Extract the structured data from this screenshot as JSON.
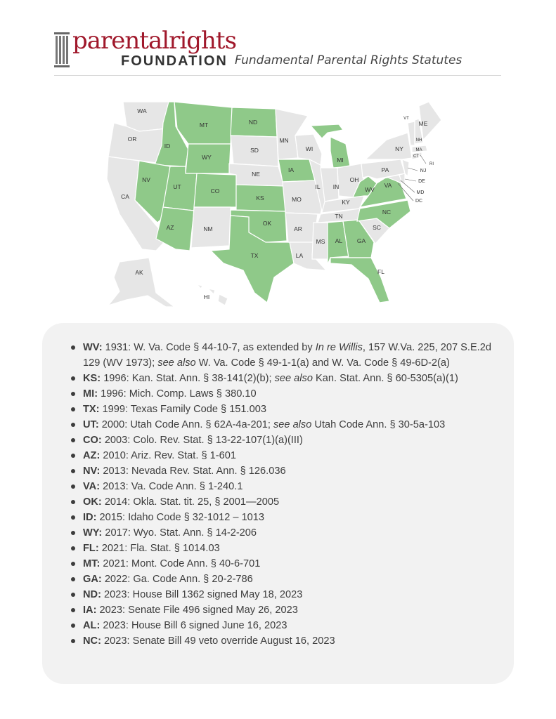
{
  "header": {
    "logo_word": "parentalrights",
    "logo_sub": "FOUNDATION",
    "title": "Fundamental Parental Rights Statutes"
  },
  "map": {
    "highlight_color": "#8fc989",
    "base_color": "#e6e6e6",
    "states": {
      "WA": "WA",
      "OR": "OR",
      "CA": "CA",
      "ID": "ID",
      "NV": "NV",
      "MT": "MT",
      "WY": "WY",
      "UT": "UT",
      "AZ": "AZ",
      "CO": "CO",
      "NM": "NM",
      "ND": "ND",
      "SD": "SD",
      "NE": "NE",
      "KS": "KS",
      "OK": "OK",
      "TX": "TX",
      "MN": "MN",
      "IA": "IA",
      "MO": "MO",
      "AR": "AR",
      "LA": "LA",
      "WI": "WI",
      "IL": "IL",
      "MI": "MI",
      "IN": "IN",
      "OH": "OH",
      "KY": "KY",
      "TN": "TN",
      "MS": "MS",
      "AL": "AL",
      "GA": "GA",
      "FL": "FL",
      "SC": "SC",
      "NC": "NC",
      "VA": "VA",
      "WV": "WV",
      "PA": "PA",
      "NY": "NY",
      "VT": "VT",
      "NH": "NH",
      "ME": "ME",
      "MA": "MA",
      "CT": "CT",
      "RI": "RI",
      "NJ": "NJ",
      "DE": "DE",
      "MD": "MD",
      "DC": "DC",
      "AK": "AK",
      "HI": "HI"
    }
  },
  "statutes": [
    {
      "state": "WV:",
      "text": " 1931: W. Va. Code § 44-10-7, as extended by ",
      "italic1": "In re Willis",
      "text2": ", 157 W.Va. 225, 207 S.E.2d 129 (WV 1973); ",
      "italic2": "see also",
      "text3": " W. Va. Code § 49-1-1(a) and W. Va. Code § 49-6D-2(a)"
    },
    {
      "state": "KS:",
      "text": " 1996: Kan. Stat. Ann. § 38-141(2)(b); ",
      "italic1": "see also",
      "text2": " Kan. Stat. Ann. § 60-5305(a)(1)"
    },
    {
      "state": "MI:",
      "text": " 1996: Mich. Comp. Laws § 380.10"
    },
    {
      "state": "TX:",
      "text": " 1999: Texas Family Code § 151.003"
    },
    {
      "state": "UT:",
      "text": " 2000: Utah Code Ann. § 62A-4a-201; ",
      "italic1": "see also",
      "text2": " Utah Code Ann. § 30-5a-103"
    },
    {
      "state": "CO:",
      "text": " 2003: Colo. Rev. Stat. § 13-22-107(1)(a)(III)"
    },
    {
      "state": "AZ:",
      "text": " 2010: Ariz. Rev. Stat. § 1-601"
    },
    {
      "state": "NV:",
      "text": " 2013: Nevada Rev. Stat. Ann. § 126.036"
    },
    {
      "state": "VA:",
      "text": " 2013: Va. Code Ann. § 1-240.1"
    },
    {
      "state": "OK:",
      "text": " 2014: Okla. Stat. tit. 25, § 2001—2005"
    },
    {
      "state": "ID:",
      "text": " 2015: Idaho Code § 32-1012 – 1013"
    },
    {
      "state": "WY:",
      "text": " 2017: Wyo. Stat. Ann. § 14-2-206"
    },
    {
      "state": "FL:",
      "text": " 2021: Fla. Stat. § 1014.03"
    },
    {
      "state": "MT:",
      "text": " 2021: Mont. Code Ann. § 40-6-701"
    },
    {
      "state": "GA:",
      "text": " 2022: Ga. Code Ann. § 20-2-786"
    },
    {
      "state": "ND:",
      "text": " 2023: House Bill 1362 signed May 18, 2023"
    },
    {
      "state": "IA:",
      "text": " 2023: Senate File 496 signed May 26, 2023"
    },
    {
      "state": "AL:",
      "text": " 2023: House Bill 6 signed June 16, 2023"
    },
    {
      "state": "NC:",
      "text": " 2023: Senate Bill 49 veto override August 16, 2023"
    }
  ]
}
